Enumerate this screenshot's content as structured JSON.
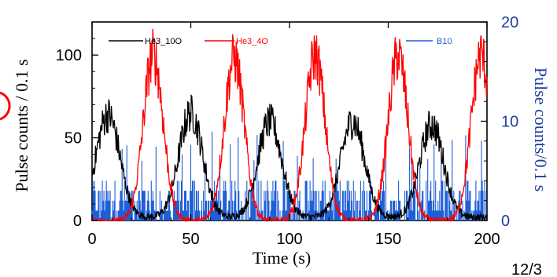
{
  "slide": {
    "page_number": "12/3"
  },
  "chart_data": {
    "type": "line",
    "xlabel": "Time (s)",
    "ylabel_left": "Pulse counts / 0.1 s",
    "ylabel_right": "Pulse counts/0.1 s",
    "xlim": [
      0,
      200
    ],
    "ylim_left": [
      0,
      120
    ],
    "ylim_right": [
      0,
      20
    ],
    "x_ticks": [
      0,
      50,
      100,
      150,
      200
    ],
    "y_left_ticks": [
      0,
      50,
      100
    ],
    "y_right_ticks": [
      0,
      10,
      20
    ],
    "grid": false,
    "legend_placement": "top",
    "series": [
      {
        "name": "He3_10O",
        "axis": "left",
        "color": "#000000",
        "peak_times_s": [
          8,
          50,
          90,
          132,
          172
        ],
        "peak_values": [
          62,
          63,
          58,
          58,
          56
        ],
        "peak_width_s": 6,
        "baseline": 2
      },
      {
        "name": "He3_4O",
        "axis": "left",
        "color": "#ff0000",
        "peak_times_s": [
          31,
          72,
          113,
          155,
          197
        ],
        "peak_values": [
          100,
          98,
          100,
          100,
          100
        ],
        "peak_width_s": 5,
        "baseline": 0
      },
      {
        "name": "B10",
        "axis": "right",
        "color": "#1f5fd6",
        "typical_range": [
          0,
          4
        ],
        "max_spike": 9
      }
    ]
  }
}
